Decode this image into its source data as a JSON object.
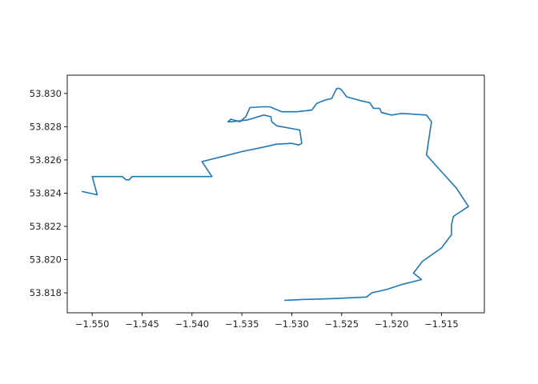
{
  "chart_data": {
    "type": "line",
    "title": "",
    "xlabel": "",
    "ylabel": "",
    "xlim": [
      -1.5525,
      -1.5107
    ],
    "ylim": [
      53.8168,
      53.8311
    ],
    "xticks": [
      -1.55,
      -1.545,
      -1.54,
      -1.535,
      -1.53,
      -1.525,
      -1.52,
      -1.515
    ],
    "xtick_labels": [
      "−1.550",
      "−1.545",
      "−1.540",
      "−1.535",
      "−1.530",
      "−1.525",
      "−1.520",
      "−1.515"
    ],
    "yticks": [
      53.818,
      53.82,
      53.822,
      53.824,
      53.826,
      53.828,
      53.83
    ],
    "ytick_labels": [
      "53.818",
      "53.820",
      "53.822",
      "53.824",
      "53.826",
      "53.828",
      "53.830"
    ],
    "grid": false,
    "line_color": "#1f77b4",
    "series": [
      {
        "x": [
          -1.5307,
          -1.529,
          -1.526,
          -1.5225,
          -1.522,
          -1.5205,
          -1.519,
          -1.517,
          -1.5178,
          -1.5169,
          -1.515,
          -1.514,
          -1.514,
          -1.5138,
          -1.5123,
          -1.5135,
          -1.515,
          -1.5165,
          -1.516,
          -1.5165,
          -1.519,
          -1.52,
          -1.521,
          -1.5212,
          -1.5218,
          -1.5222,
          -1.523,
          -1.5245,
          -1.525,
          -1.5252,
          -1.5255,
          -1.526,
          -1.5267,
          -1.5275,
          -1.528,
          -1.5295,
          -1.531,
          -1.5322,
          -1.533,
          -1.5342,
          -1.5343,
          -1.5346,
          -1.5352,
          -1.5355,
          -1.5361,
          -1.5364,
          -1.536,
          -1.5345,
          -1.5328,
          -1.5321,
          -1.532,
          -1.5315,
          -1.5292,
          -1.529,
          -1.5293,
          -1.5293,
          -1.53,
          -1.5315,
          -1.533,
          -1.535,
          -1.537,
          -1.539,
          -1.538,
          -1.5392,
          -1.543,
          -1.546,
          -1.5463,
          -1.5466,
          -1.547,
          -1.55,
          -1.5495,
          -1.551
        ],
        "y": [
          53.81755,
          53.8176,
          53.81765,
          53.81775,
          53.818,
          53.8182,
          53.8185,
          53.8188,
          53.8192,
          53.8199,
          53.8207,
          53.8215,
          53.8221,
          53.8226,
          53.8232,
          53.8243,
          53.8253,
          53.8263,
          53.8283,
          53.8287,
          53.8288,
          53.8287,
          53.82885,
          53.8291,
          53.8291,
          53.82945,
          53.82955,
          53.8298,
          53.8302,
          53.8303,
          53.8303,
          53.8297,
          53.8296,
          53.8294,
          53.829,
          53.8289,
          53.8289,
          53.8292,
          53.8292,
          53.82915,
          53.829,
          53.8286,
          53.8283,
          53.82835,
          53.82845,
          53.8283,
          53.8283,
          53.8284,
          53.8287,
          53.8286,
          53.8283,
          53.82805,
          53.8278,
          53.827,
          53.8269,
          53.8269,
          53.827,
          53.82695,
          53.82675,
          53.8265,
          53.8262,
          53.8259,
          53.825,
          53.825,
          53.825,
          53.825,
          53.8248,
          53.8248,
          53.825,
          53.825,
          53.8239,
          53.8241
        ]
      }
    ]
  }
}
